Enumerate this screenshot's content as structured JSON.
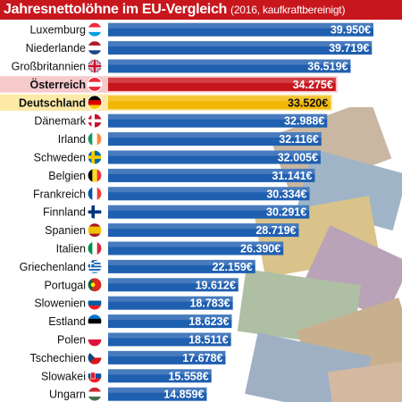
{
  "chart_data": {
    "type": "bar",
    "orientation": "horizontal",
    "title": "Jahresnettolöhne im EU-Vergleich",
    "subtitle": "(2016, kaufkraftbereinigt)",
    "categories": [
      "Luxemburg",
      "Niederlande",
      "Großbritannien",
      "Österreich",
      "Deutschland",
      "Dänemark",
      "Irland",
      "Schweden",
      "Belgien",
      "Frankreich",
      "Finnland",
      "Spanien",
      "Italien",
      "Griechenland",
      "Portugal",
      "Slowenien",
      "Estland",
      "Polen",
      "Tschechien",
      "Slowakei",
      "Ungarn"
    ],
    "values": [
      39950,
      39719,
      36519,
      34275,
      33520,
      32988,
      32116,
      32005,
      31141,
      30334,
      30291,
      28719,
      26390,
      22159,
      19612,
      18783,
      18623,
      18511,
      17678,
      15558,
      14859
    ],
    "value_labels": [
      "39.950€",
      "39.719€",
      "36.519€",
      "34.275€",
      "33.520€",
      "32.988€",
      "32.116€",
      "32.005€",
      "31.141€",
      "30.334€",
      "30.291€",
      "28.719€",
      "26.390€",
      "22.159€",
      "19.612€",
      "18.783€",
      "18.623€",
      "18.511€",
      "17.678€",
      "15.558€",
      "14.859€"
    ],
    "highlight": {
      "Österreich": "#c8161d",
      "Deutschland": "#f2b705"
    },
    "bar_color": "#1f5fb0",
    "flag_icons": [
      "flag-lu-icon",
      "flag-nl-icon",
      "flag-gb-icon",
      "flag-at-icon",
      "flag-de-icon",
      "flag-dk-icon",
      "flag-ie-icon",
      "flag-se-icon",
      "flag-be-icon",
      "flag-fr-icon",
      "flag-fi-icon",
      "flag-es-icon",
      "flag-it-icon",
      "flag-gr-icon",
      "flag-pt-icon",
      "flag-si-icon",
      "flag-ee-icon",
      "flag-pl-icon",
      "flag-cz-icon",
      "flag-sk-icon",
      "flag-hu-icon"
    ]
  }
}
